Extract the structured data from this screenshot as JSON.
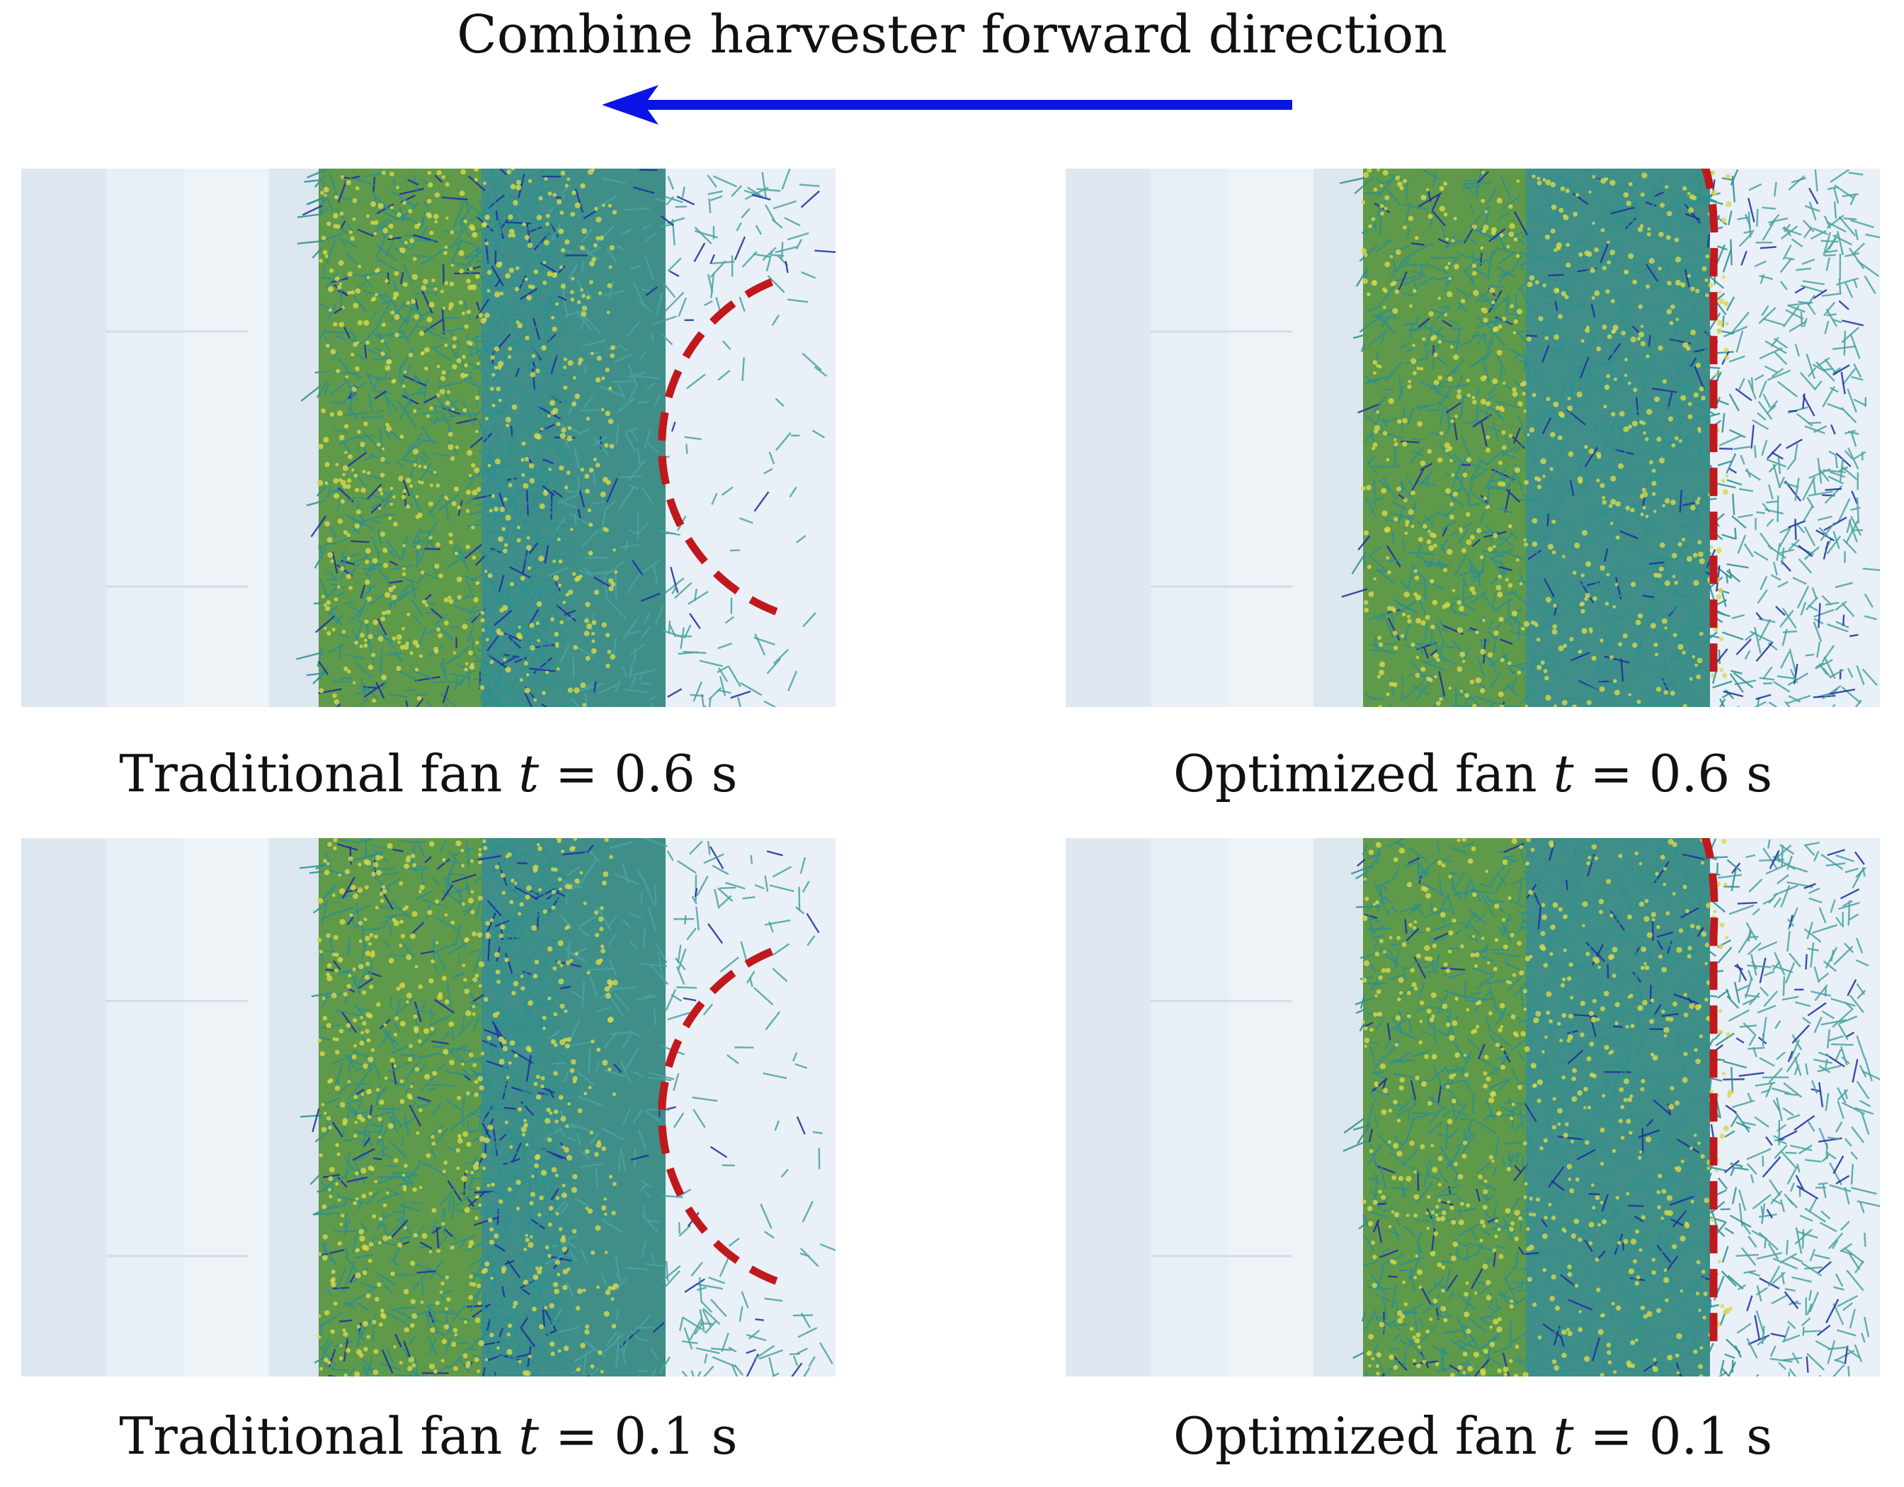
{
  "title": "Combine harvester forward direction",
  "arrow_color": "#0a14e6",
  "boundary_color": "#c0191d",
  "colors": {
    "background_bands": [
      "#dfe8f1",
      "#e8eff6",
      "#eef3f8",
      "#dde7f0"
    ],
    "straw_dense": "#2f8f8f",
    "grain": "#d8d84a",
    "blue_fiber": "#1f2fa0",
    "straw_sparse": "#4aa3a0"
  },
  "panels": [
    {
      "id": "trad-06",
      "caption_prefix": "Traditional fan",
      "var": "t",
      "eq": " = ",
      "value": "0.6 s",
      "boundary": "semicircle"
    },
    {
      "id": "opt-06",
      "caption_prefix": "Optimized fan",
      "var": "t",
      "eq": " = ",
      "value": "0.6 s",
      "boundary": "line"
    },
    {
      "id": "trad-01",
      "caption_prefix": "Traditional fan",
      "var": "t",
      "eq": " = ",
      "value": "0.1 s",
      "boundary": "semicircle"
    },
    {
      "id": "opt-01",
      "caption_prefix": "Optimized fan",
      "var": "t",
      "eq": " = ",
      "value": "0.1 s",
      "boundary": "line"
    }
  ]
}
